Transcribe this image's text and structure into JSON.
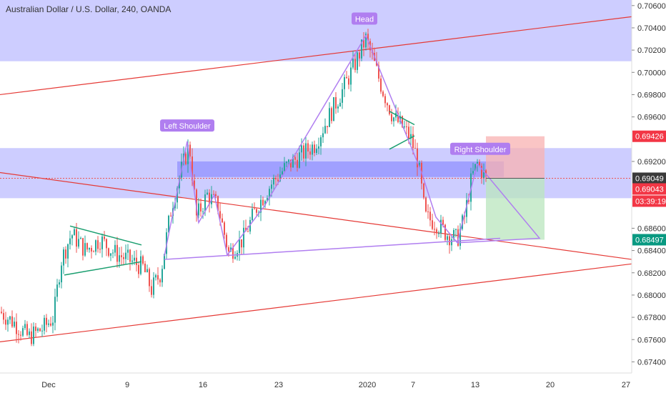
{
  "chart_data": {
    "type": "candlestick",
    "title": "Australian Dollar / U.S. Dollar, 240, OANDA",
    "ylim": [
      0.673,
      0.7065
    ],
    "y_ticks": [
      "0.70600",
      "0.70400",
      "0.70200",
      "0.70000",
      "0.69800",
      "0.69600",
      "0.69200",
      "0.68600",
      "0.68400",
      "0.68200",
      "0.68000",
      "0.67800",
      "0.67600",
      "0.67400"
    ],
    "x_ticks": [
      "Dec",
      "9",
      "16",
      "23",
      "2020",
      "7",
      "13",
      "20",
      "27"
    ],
    "pattern_labels": [
      "Left Shoulder",
      "Head",
      "Right Shoulder"
    ],
    "price_badges": [
      {
        "text": "0.69426",
        "color": "#f23645"
      },
      {
        "text": "0.69049",
        "color": "#3a3a3a"
      },
      {
        "text": "0.69043",
        "color": "#f23645"
      },
      {
        "text": "03:39:19",
        "color": "#f23645"
      },
      {
        "text": "0.68497",
        "color": "#089981"
      }
    ],
    "key_prices": {
      "head": 0.7033,
      "left_shoulder": 0.6938,
      "right_shoulder": 0.6918,
      "neckline_left": 0.6836,
      "neckline_right": 0.6851,
      "current": 0.69049,
      "stop": 0.69426,
      "target": 0.68497
    },
    "zones": [
      {
        "from": 0.7065,
        "to": 0.701
      },
      {
        "from": 0.6932,
        "to": 0.6887
      },
      {
        "from": 0.692,
        "to": 0.6906
      }
    ],
    "price_path": [
      [
        0,
        0.6785
      ],
      [
        20,
        0.6775
      ],
      [
        40,
        0.6762
      ],
      [
        60,
        0.677
      ],
      [
        75,
        0.678
      ],
      [
        85,
        0.683
      ],
      [
        100,
        0.6855
      ],
      [
        120,
        0.684
      ],
      [
        140,
        0.685
      ],
      [
        160,
        0.6838
      ],
      [
        185,
        0.683
      ],
      [
        200,
        0.6825
      ],
      [
        212,
        0.6805
      ],
      [
        225,
        0.682
      ],
      [
        240,
        0.688
      ],
      [
        255,
        0.6915
      ],
      [
        265,
        0.6935
      ],
      [
        275,
        0.687
      ],
      [
        290,
        0.689
      ],
      [
        305,
        0.688
      ],
      [
        320,
        0.6838
      ],
      [
        340,
        0.685
      ],
      [
        360,
        0.688
      ],
      [
        380,
        0.69
      ],
      [
        400,
        0.6915
      ],
      [
        420,
        0.6925
      ],
      [
        440,
        0.6935
      ],
      [
        460,
        0.696
      ],
      [
        480,
        0.6985
      ],
      [
        495,
        0.7005
      ],
      [
        505,
        0.702
      ],
      [
        512,
        0.703
      ],
      [
        520,
        0.7015
      ],
      [
        535,
        0.6985
      ],
      [
        550,
        0.696
      ],
      [
        565,
        0.695
      ],
      [
        575,
        0.694
      ],
      [
        585,
        0.692
      ],
      [
        595,
        0.687
      ],
      [
        610,
        0.6865
      ],
      [
        625,
        0.6855
      ],
      [
        640,
        0.685
      ],
      [
        650,
        0.687
      ],
      [
        660,
        0.6905
      ],
      [
        668,
        0.6918
      ],
      [
        680,
        0.6905
      ]
    ],
    "candle_body_min": 0.0003
  },
  "colors": {
    "up": "#26a69a",
    "down": "#ef5350",
    "zone": "#4d4dff",
    "trend": "#e53935",
    "pattern": "#b07ef0",
    "wedge": "#1a9e6f",
    "stop_area": "#f8b2b2",
    "target_area": "#b9e6be"
  }
}
